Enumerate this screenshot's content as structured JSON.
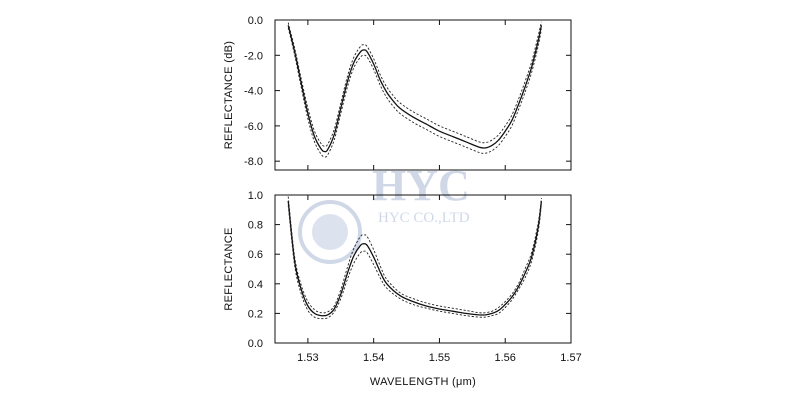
{
  "watermark": {
    "logo": "HYC",
    "sub": "HYC CO.,LTD",
    "color": "#c8d2e4"
  },
  "chart_data": [
    {
      "type": "line",
      "title": "",
      "xlabel": "",
      "ylabel": "REFLECTANCE (dB)",
      "xlim": [
        1.525,
        1.57
      ],
      "ylim": [
        -8.5,
        0.0
      ],
      "yticks": [
        0.0,
        -2.0,
        -4.0,
        -6.0,
        -8.0
      ],
      "ytick_labels": [
        "0.0",
        "-2.0",
        "-4.0",
        "-6.0",
        "-8.0"
      ],
      "xticks": [
        1.53,
        1.54,
        1.55,
        1.56,
        1.57
      ],
      "grid": false,
      "series": [
        {
          "style": "solid",
          "x": [
            1.527,
            1.528,
            1.529,
            1.53,
            1.531,
            1.532,
            1.5325,
            1.533,
            1.534,
            1.535,
            1.536,
            1.537,
            1.538,
            1.5385,
            1.539,
            1.54,
            1.541,
            1.542,
            1.543,
            1.544,
            1.546,
            1.548,
            1.55,
            1.552,
            1.554,
            1.556,
            1.557,
            1.558,
            1.559,
            1.56,
            1.561,
            1.562,
            1.563,
            1.564,
            1.565,
            1.5655
          ],
          "y": [
            -0.3,
            -1.8,
            -3.6,
            -5.3,
            -6.6,
            -7.3,
            -7.45,
            -7.35,
            -6.5,
            -5.0,
            -3.5,
            -2.4,
            -1.8,
            -1.7,
            -1.8,
            -2.5,
            -3.4,
            -4.1,
            -4.6,
            -5.0,
            -5.5,
            -5.9,
            -6.3,
            -6.6,
            -6.9,
            -7.2,
            -7.25,
            -7.1,
            -6.8,
            -6.3,
            -5.7,
            -4.8,
            -3.8,
            -2.7,
            -1.2,
            -0.3
          ]
        },
        {
          "style": "dashed",
          "x": [
            1.527,
            1.528,
            1.529,
            1.53,
            1.531,
            1.532,
            1.5325,
            1.533,
            1.534,
            1.535,
            1.536,
            1.537,
            1.538,
            1.5385,
            1.539,
            1.54,
            1.541,
            1.542,
            1.543,
            1.544,
            1.546,
            1.548,
            1.55,
            1.552,
            1.554,
            1.556,
            1.557,
            1.558,
            1.559,
            1.56,
            1.561,
            1.562,
            1.563,
            1.564,
            1.565,
            1.5655
          ],
          "y": [
            -0.15,
            -1.6,
            -3.35,
            -5.0,
            -6.3,
            -7.0,
            -7.15,
            -7.05,
            -6.2,
            -4.7,
            -3.2,
            -2.1,
            -1.5,
            -1.4,
            -1.5,
            -2.2,
            -3.1,
            -3.8,
            -4.3,
            -4.7,
            -5.2,
            -5.6,
            -6.0,
            -6.3,
            -6.6,
            -6.9,
            -6.95,
            -6.8,
            -6.5,
            -6.0,
            -5.4,
            -4.5,
            -3.5,
            -2.4,
            -0.9,
            -0.1
          ]
        },
        {
          "style": "dashed",
          "x": [
            1.527,
            1.528,
            1.529,
            1.53,
            1.531,
            1.532,
            1.5325,
            1.533,
            1.534,
            1.535,
            1.536,
            1.537,
            1.538,
            1.5385,
            1.539,
            1.54,
            1.541,
            1.542,
            1.543,
            1.544,
            1.546,
            1.548,
            1.55,
            1.552,
            1.554,
            1.556,
            1.557,
            1.558,
            1.559,
            1.56,
            1.561,
            1.562,
            1.563,
            1.564,
            1.565,
            1.5655
          ],
          "y": [
            -0.45,
            -2.0,
            -3.85,
            -5.6,
            -6.9,
            -7.6,
            -7.75,
            -7.65,
            -6.8,
            -5.3,
            -3.8,
            -2.7,
            -2.1,
            -2.0,
            -2.1,
            -2.8,
            -3.7,
            -4.4,
            -4.9,
            -5.3,
            -5.8,
            -6.2,
            -6.6,
            -6.9,
            -7.2,
            -7.5,
            -7.55,
            -7.4,
            -7.1,
            -6.6,
            -6.0,
            -5.1,
            -4.1,
            -3.0,
            -1.5,
            -0.5
          ]
        }
      ]
    },
    {
      "type": "line",
      "title": "",
      "xlabel": "WAVELENGTH (μm)",
      "ylabel": "REFLECTANCE",
      "xlim": [
        1.525,
        1.57
      ],
      "ylim": [
        0.0,
        1.0
      ],
      "yticks": [
        0.0,
        0.2,
        0.4,
        0.6,
        0.8,
        1.0
      ],
      "ytick_labels": [
        "0.0",
        "0.2",
        "0.4",
        "0.6",
        "0.8",
        "1.0"
      ],
      "xticks": [
        1.53,
        1.54,
        1.55,
        1.56,
        1.57
      ],
      "xtick_labels": [
        "1.53",
        "1.54",
        "1.55",
        "1.56",
        "1.57"
      ],
      "grid": false,
      "series": [
        {
          "style": "solid",
          "x": [
            1.527,
            1.528,
            1.529,
            1.53,
            1.531,
            1.532,
            1.533,
            1.534,
            1.535,
            1.536,
            1.537,
            1.538,
            1.5385,
            1.539,
            1.54,
            1.541,
            1.542,
            1.544,
            1.546,
            1.548,
            1.55,
            1.552,
            1.554,
            1.556,
            1.557,
            1.558,
            1.559,
            1.56,
            1.561,
            1.562,
            1.563,
            1.564,
            1.565,
            1.5655
          ],
          "y": [
            0.96,
            0.55,
            0.36,
            0.25,
            0.2,
            0.185,
            0.19,
            0.23,
            0.33,
            0.47,
            0.59,
            0.66,
            0.67,
            0.66,
            0.58,
            0.48,
            0.4,
            0.32,
            0.28,
            0.25,
            0.23,
            0.215,
            0.2,
            0.19,
            0.19,
            0.2,
            0.22,
            0.26,
            0.31,
            0.38,
            0.47,
            0.58,
            0.78,
            0.96
          ]
        },
        {
          "style": "dashed",
          "x": [
            1.527,
            1.528,
            1.529,
            1.53,
            1.531,
            1.532,
            1.533,
            1.534,
            1.535,
            1.536,
            1.537,
            1.538,
            1.5385,
            1.539,
            1.54,
            1.541,
            1.542,
            1.544,
            1.546,
            1.548,
            1.55,
            1.552,
            1.554,
            1.556,
            1.557,
            1.558,
            1.559,
            1.56,
            1.561,
            1.562,
            1.563,
            1.564,
            1.565,
            1.5655
          ],
          "y": [
            0.99,
            0.58,
            0.39,
            0.28,
            0.225,
            0.205,
            0.21,
            0.25,
            0.36,
            0.51,
            0.64,
            0.72,
            0.73,
            0.72,
            0.63,
            0.52,
            0.43,
            0.34,
            0.3,
            0.27,
            0.25,
            0.235,
            0.22,
            0.205,
            0.205,
            0.215,
            0.24,
            0.28,
            0.33,
            0.4,
            0.5,
            0.61,
            0.81,
            0.98
          ]
        },
        {
          "style": "dashed",
          "x": [
            1.527,
            1.528,
            1.529,
            1.53,
            1.531,
            1.532,
            1.533,
            1.534,
            1.535,
            1.536,
            1.537,
            1.538,
            1.5385,
            1.539,
            1.54,
            1.541,
            1.542,
            1.544,
            1.546,
            1.548,
            1.55,
            1.552,
            1.554,
            1.556,
            1.557,
            1.558,
            1.559,
            1.56,
            1.561,
            1.562,
            1.563,
            1.564,
            1.565,
            1.5655
          ],
          "y": [
            0.93,
            0.52,
            0.33,
            0.22,
            0.175,
            0.165,
            0.17,
            0.21,
            0.3,
            0.43,
            0.54,
            0.61,
            0.62,
            0.61,
            0.53,
            0.44,
            0.37,
            0.3,
            0.26,
            0.235,
            0.215,
            0.2,
            0.185,
            0.175,
            0.175,
            0.185,
            0.2,
            0.24,
            0.29,
            0.36,
            0.44,
            0.55,
            0.75,
            0.94
          ]
        }
      ]
    }
  ]
}
